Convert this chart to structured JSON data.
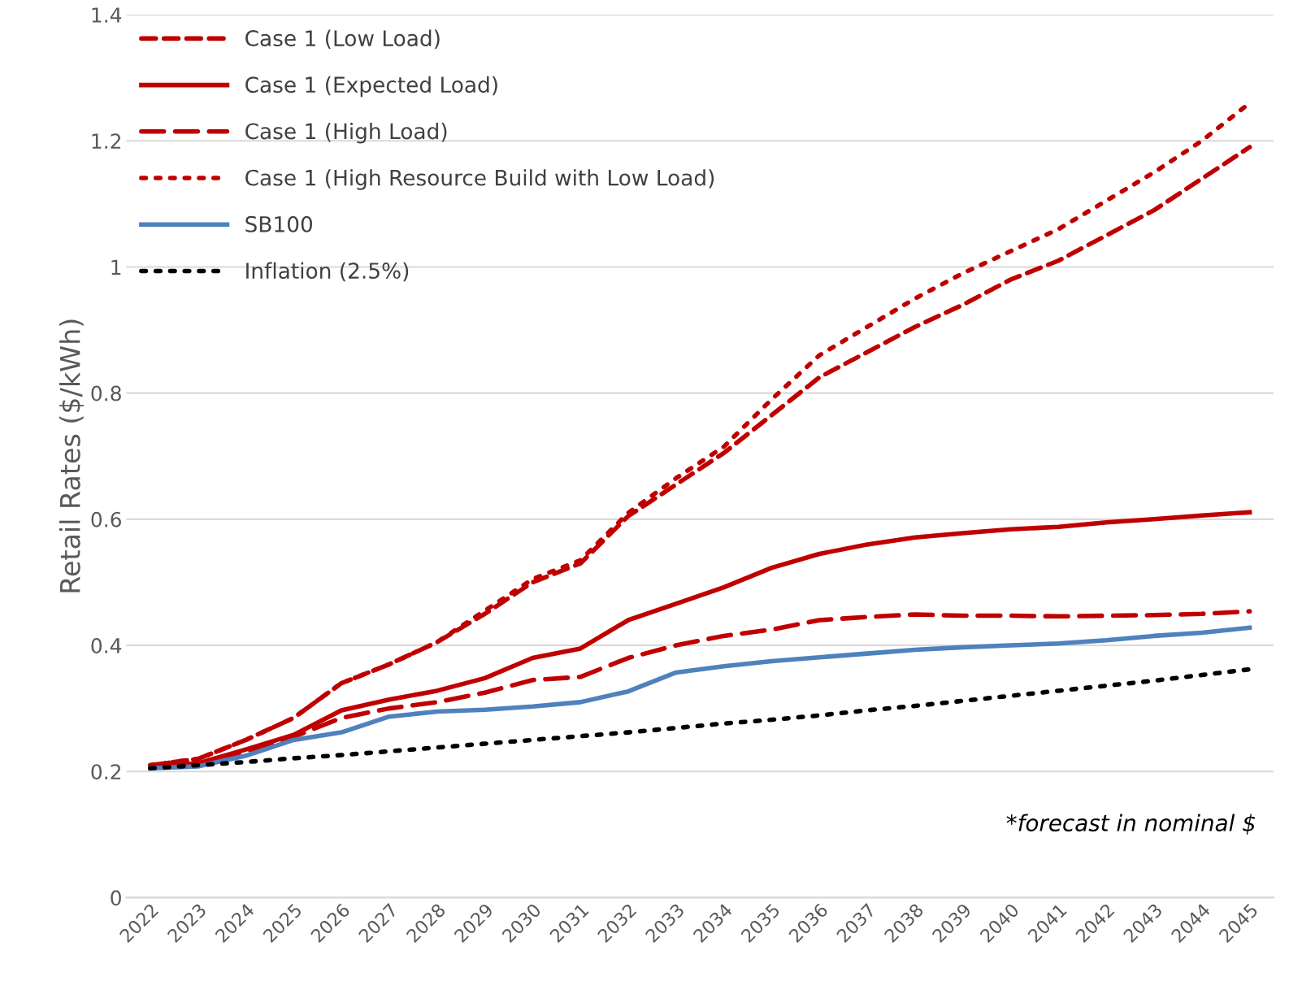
{
  "chart_data": {
    "type": "line",
    "ylabel": "Retail Rates ($/kWh)",
    "categories": [
      "2022",
      "2023",
      "2024",
      "2025",
      "2026",
      "2027",
      "2028",
      "2029",
      "2030",
      "2031",
      "2032",
      "2033",
      "2034",
      "2035",
      "2036",
      "2037",
      "2038",
      "2039",
      "2040",
      "2041",
      "2042",
      "2043",
      "2044",
      "2045"
    ],
    "series": [
      {
        "name": "Case 1 (Low Load)",
        "color": "#c00000",
        "line_style": "dashed",
        "values": [
          0.21,
          0.22,
          0.25,
          0.285,
          0.34,
          0.37,
          0.405,
          0.45,
          0.5,
          0.53,
          0.605,
          0.655,
          0.705,
          0.765,
          0.825,
          0.865,
          0.905,
          0.94,
          0.98,
          1.01,
          1.05,
          1.09,
          1.14,
          1.19
        ]
      },
      {
        "name": "Case 1 (Expected Load)",
        "color": "#c00000",
        "line_style": "solid",
        "values": [
          0.207,
          0.213,
          0.235,
          0.258,
          0.297,
          0.314,
          0.328,
          0.348,
          0.38,
          0.395,
          0.44,
          0.466,
          0.492,
          0.523,
          0.545,
          0.56,
          0.571,
          0.578,
          0.584,
          0.588,
          0.595,
          0.6,
          0.606,
          0.611
        ]
      },
      {
        "name": "Case 1 (High Load)",
        "color": "#c00000",
        "line_style": "dashdot",
        "values": [
          0.207,
          0.213,
          0.232,
          0.255,
          0.285,
          0.3,
          0.31,
          0.325,
          0.345,
          0.35,
          0.38,
          0.4,
          0.415,
          0.425,
          0.44,
          0.445,
          0.449,
          0.447,
          0.447,
          0.446,
          0.447,
          0.448,
          0.45,
          0.454
        ]
      },
      {
        "name": "Case 1 (High Resource Build with Low Load)",
        "color": "#c00000",
        "line_style": "dotted",
        "values": [
          0.21,
          0.22,
          0.25,
          0.285,
          0.34,
          0.37,
          0.405,
          0.455,
          0.505,
          0.535,
          0.61,
          0.665,
          0.715,
          0.79,
          0.86,
          0.905,
          0.95,
          0.99,
          1.025,
          1.06,
          1.105,
          1.15,
          1.2,
          1.26
        ]
      },
      {
        "name": "SB100",
        "color": "#4f81bd",
        "line_style": "solid",
        "values": [
          0.205,
          0.208,
          0.225,
          0.25,
          0.262,
          0.287,
          0.295,
          0.298,
          0.303,
          0.31,
          0.327,
          0.357,
          0.367,
          0.375,
          0.381,
          0.387,
          0.393,
          0.397,
          0.4,
          0.403,
          0.408,
          0.415,
          0.42,
          0.428
        ]
      },
      {
        "name": "Inflation (2.5%)",
        "color": "#000000",
        "line_style": "dotted",
        "values": [
          0.205,
          0.21,
          0.215,
          0.221,
          0.226,
          0.232,
          0.238,
          0.244,
          0.25,
          0.256,
          0.262,
          0.269,
          0.276,
          0.282,
          0.289,
          0.297,
          0.304,
          0.312,
          0.32,
          0.328,
          0.336,
          0.344,
          0.353,
          0.362
        ]
      }
    ],
    "ylim": [
      0,
      1.4
    ],
    "yticks": [
      0,
      0.2,
      0.4,
      0.6,
      0.8,
      1,
      1.2,
      1.4
    ],
    "grid": "y",
    "legend": "top left",
    "marker": "none",
    "annotations": [
      "*forecast in nominal $"
    ]
  }
}
